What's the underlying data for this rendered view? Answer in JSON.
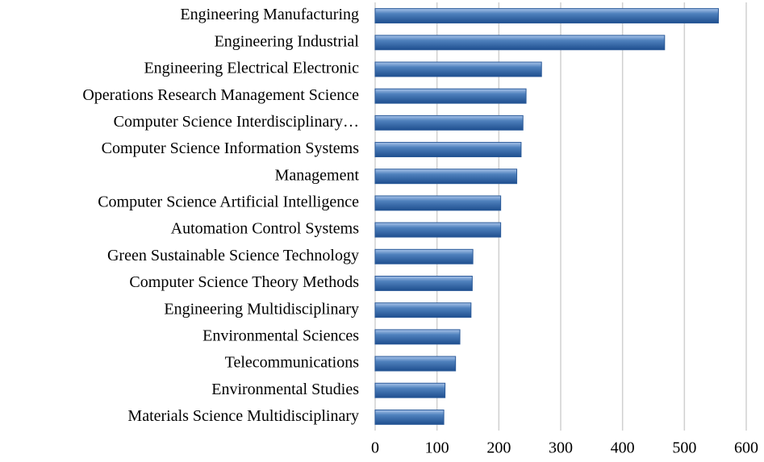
{
  "chart_data": {
    "type": "barh",
    "categories": [
      "Engineering Manufacturing",
      "Engineering Industrial",
      "Engineering Electrical Electronic",
      "Operations Research Management Science",
      "Computer Science Interdisciplinary…",
      "Computer Science Information Systems",
      "Management",
      "Computer Science Artificial Intelligence",
      "Automation Control Systems",
      "Green Sustainable Science Technology",
      "Computer Science Theory Methods",
      "Engineering Multidisciplinary",
      "Environmental Sciences",
      "Telecommunications",
      "Environmental Studies",
      "Materials Science Multidisciplinary"
    ],
    "values": [
      555,
      468,
      269,
      244,
      239,
      236,
      229,
      203,
      203,
      158,
      157,
      155,
      137,
      130,
      113,
      111
    ],
    "color": "#4f81bd",
    "xlim": [
      0,
      600
    ],
    "xticks": [
      0,
      100,
      200,
      300,
      400,
      500,
      600
    ],
    "grid": true
  }
}
